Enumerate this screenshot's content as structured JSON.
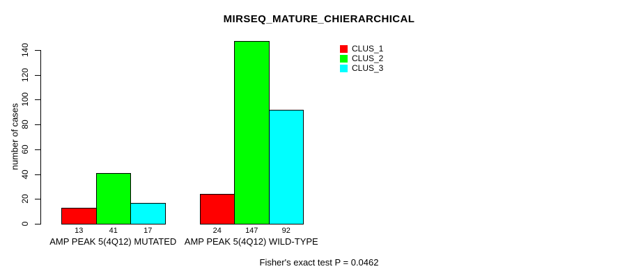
{
  "chart_data": {
    "type": "bar",
    "title": "MIRSEQ_MATURE_CHIERARCHICAL",
    "ylabel": "number of cases",
    "xlabel": "",
    "footnote": "Fisher's exact test P = 0.0462",
    "ylim": [
      0,
      140
    ],
    "yticks": [
      0,
      20,
      40,
      60,
      80,
      100,
      120,
      140
    ],
    "grid": false,
    "bar_value_labels_shown": true,
    "legend_position": "top-right",
    "categories": [
      "AMP PEAK 5(4Q12) MUTATED",
      "AMP PEAK 5(4Q12) WILD-TYPE"
    ],
    "series": [
      {
        "name": "CLUS_1",
        "color": "#ff0000",
        "values": [
          13,
          24
        ]
      },
      {
        "name": "CLUS_2",
        "color": "#00ff00",
        "values": [
          41,
          147
        ]
      },
      {
        "name": "CLUS_3",
        "color": "#00ffff",
        "values": [
          17,
          92
        ]
      }
    ],
    "colors": {
      "background": "#ffffff",
      "axis": "#000000",
      "bar_border": "#000000",
      "text": "#000000"
    }
  }
}
